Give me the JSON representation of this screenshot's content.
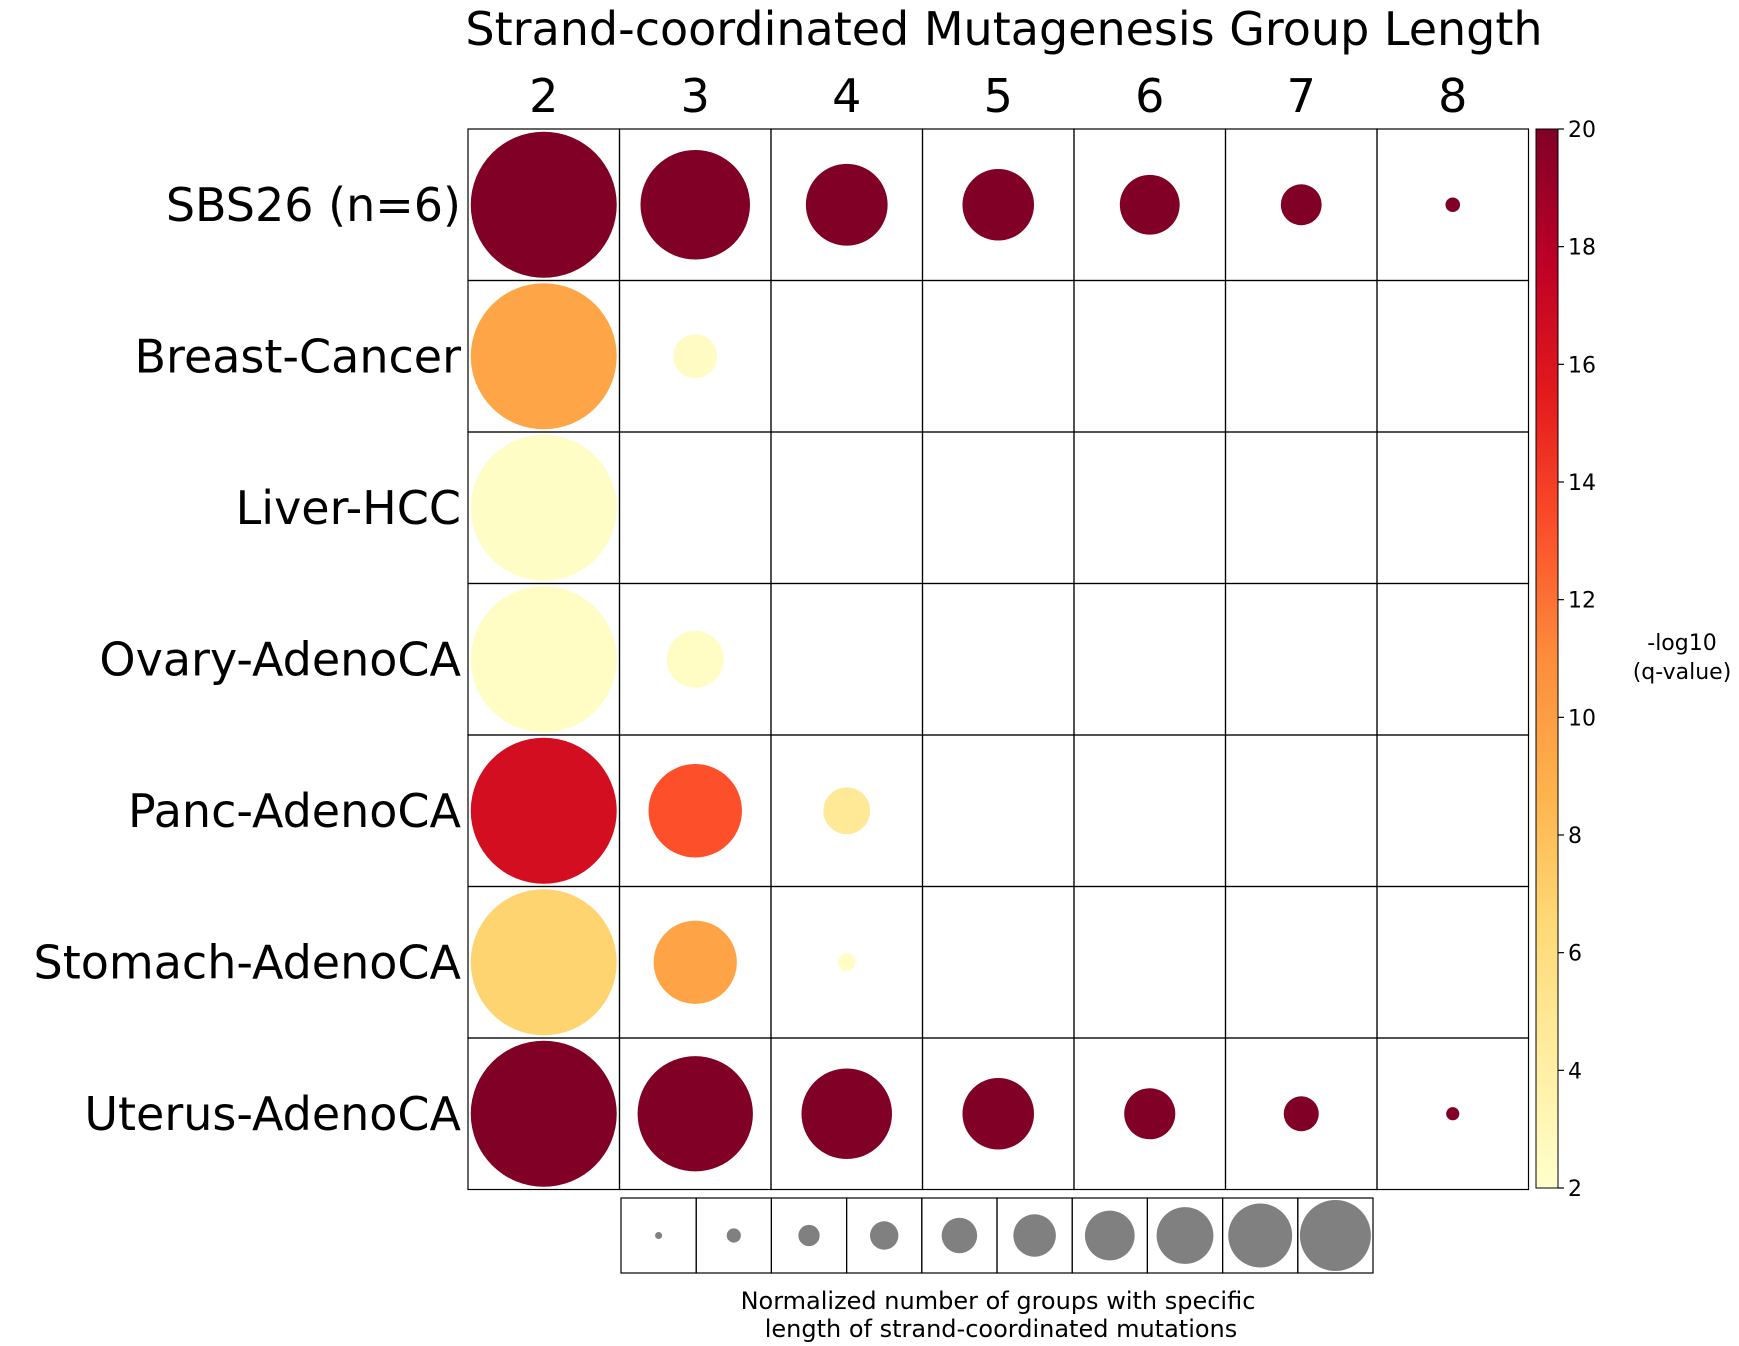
{
  "chart_data": {
    "type": "bubble-heatmap",
    "title": "Strand-coordinated Mutagenesis Group Length",
    "columns": [
      "2",
      "3",
      "4",
      "5",
      "6",
      "7",
      "8"
    ],
    "rows": [
      {
        "label": "SBS26 (n=6)",
        "cells": [
          {
            "size": 1.0,
            "q": 20
          },
          {
            "size": 0.75,
            "q": 20
          },
          {
            "size": 0.56,
            "q": 20
          },
          {
            "size": 0.49,
            "q": 20
          },
          {
            "size": 0.41,
            "q": 20
          },
          {
            "size": 0.28,
            "q": 20
          },
          {
            "size": 0.1,
            "q": 20
          }
        ]
      },
      {
        "label": "Breast-Cancer",
        "cells": [
          {
            "size": 1.0,
            "q": 9.5
          },
          {
            "size": 0.3,
            "q": 2.5
          },
          null,
          null,
          null,
          null,
          null
        ]
      },
      {
        "label": "Liver-HCC",
        "cells": [
          {
            "size": 1.0,
            "q": 2.3
          },
          null,
          null,
          null,
          null,
          null,
          null
        ]
      },
      {
        "label": "Ovary-AdenoCA",
        "cells": [
          {
            "size": 1.0,
            "q": 2.4
          },
          {
            "size": 0.39,
            "q": 2.4
          },
          null,
          null,
          null,
          null,
          null
        ]
      },
      {
        "label": "Panc-AdenoCA",
        "cells": [
          {
            "size": 1.0,
            "q": 16.5
          },
          {
            "size": 0.64,
            "q": 13.2
          },
          {
            "size": 0.32,
            "q": 4.8
          },
          null,
          null,
          null,
          null
        ]
      },
      {
        "label": "Stomach-AdenoCA",
        "cells": [
          {
            "size": 1.0,
            "q": 6.8
          },
          {
            "size": 0.57,
            "q": 9.6
          },
          {
            "size": 0.12,
            "q": 2.4
          },
          null,
          null,
          null,
          null
        ]
      },
      {
        "label": "Uterus-AdenoCA",
        "cells": [
          {
            "size": 1.0,
            "q": 20
          },
          {
            "size": 0.79,
            "q": 20
          },
          {
            "size": 0.62,
            "q": 20
          },
          {
            "size": 0.49,
            "q": 20
          },
          {
            "size": 0.35,
            "q": 20
          },
          {
            "size": 0.24,
            "q": 20
          },
          {
            "size": 0.09,
            "q": 20
          }
        ]
      }
    ],
    "colorbar": {
      "label_line1": "-log10",
      "label_line2": "(q-value)",
      "range": [
        2,
        20
      ],
      "ticks": [
        2,
        4,
        6,
        8,
        10,
        12,
        14,
        16,
        18,
        20
      ],
      "tick_labels": [
        "2",
        "4",
        "6",
        "8",
        "10",
        "12",
        "14",
        "16",
        "18",
        "20"
      ],
      "colormap": "YlOrRd",
      "stops": [
        "#ffffcc",
        "#ffeda0",
        "#fed976",
        "#feb24c",
        "#fd8d3c",
        "#fc4e2a",
        "#e31a1c",
        "#bd0026",
        "#800026"
      ]
    },
    "size_legend": {
      "label_line1": "Normalized number of groups with specific",
      "label_line2": "length of strand-coordinated mutations",
      "values": [
        0.1,
        0.2,
        0.3,
        0.4,
        0.5,
        0.6,
        0.7,
        0.8,
        0.9,
        1.0
      ],
      "color": "#808080"
    }
  }
}
